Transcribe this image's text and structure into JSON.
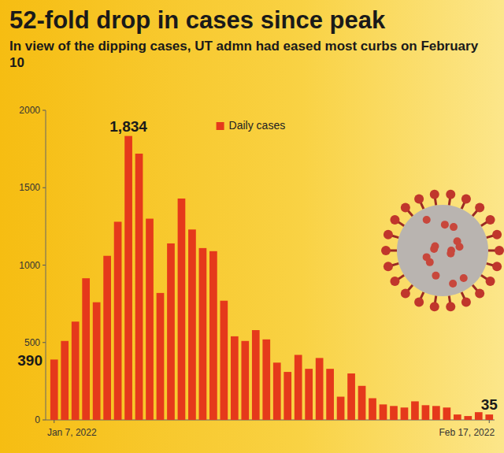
{
  "chart_data": {
    "type": "bar",
    "title": "52-fold drop in cases since peak",
    "subtitle": "In view of the dipping cases, UT admn had eased most curbs on February 10",
    "categories": [
      "Jan 7, 2022",
      null,
      null,
      null,
      null,
      null,
      null,
      null,
      null,
      null,
      null,
      null,
      null,
      null,
      null,
      null,
      null,
      null,
      null,
      null,
      null,
      null,
      null,
      null,
      null,
      null,
      null,
      null,
      null,
      null,
      null,
      null,
      null,
      null,
      null,
      null,
      null,
      null,
      null,
      null,
      null,
      "Feb 17, 2022"
    ],
    "series": [
      {
        "name": "Daily cases",
        "color": "#e5391b",
        "values": [
          390,
          510,
          635,
          915,
          760,
          1060,
          1280,
          1834,
          1720,
          1300,
          820,
          1140,
          1430,
          1230,
          1110,
          1090,
          770,
          540,
          510,
          580,
          520,
          370,
          310,
          420,
          330,
          400,
          330,
          150,
          300,
          220,
          140,
          100,
          90,
          80,
          120,
          95,
          90,
          80,
          35,
          25,
          50,
          35
        ],
        "value_labels": [
          "390",
          null,
          null,
          null,
          null,
          null,
          null,
          "1,834",
          null,
          null,
          null,
          null,
          null,
          null,
          null,
          null,
          null,
          null,
          null,
          null,
          null,
          null,
          null,
          null,
          null,
          null,
          null,
          null,
          null,
          null,
          null,
          null,
          null,
          null,
          null,
          null,
          null,
          null,
          null,
          null,
          null,
          "35"
        ]
      }
    ],
    "ylim": [
      0,
      2000
    ],
    "yticks": [
      0,
      500,
      1000,
      1500,
      2000
    ],
    "grid": false,
    "legend": "top",
    "data_labels": true
  }
}
